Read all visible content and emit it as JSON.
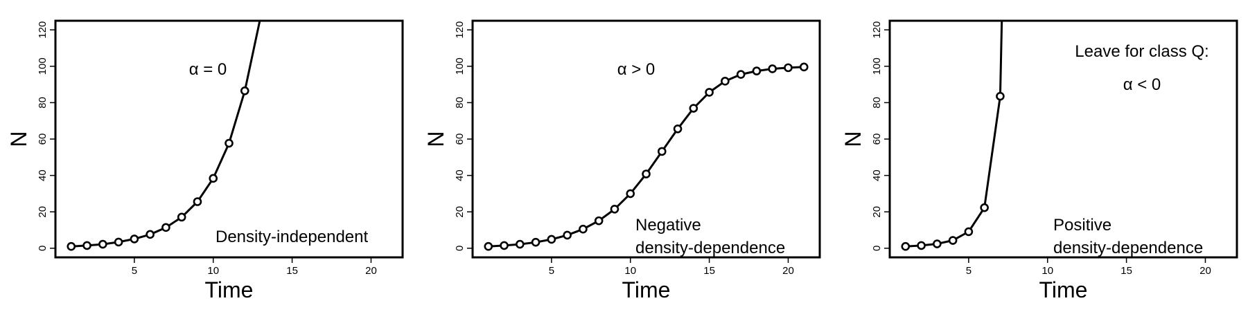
{
  "chart_data": [
    {
      "type": "line",
      "xlabel": "Time",
      "ylabel": "N",
      "xlim": [
        0,
        22
      ],
      "ylim": [
        -5,
        125
      ],
      "xticks": [
        5,
        10,
        15,
        20
      ],
      "yticks": [
        0,
        20,
        40,
        60,
        80,
        100,
        120
      ],
      "series": [
        {
          "x": [
            1,
            2,
            3,
            4,
            5,
            6,
            7,
            8,
            9,
            10,
            11,
            12
          ],
          "y": [
            1.0,
            1.5,
            2.2,
            3.4,
            5.1,
            7.6,
            11.4,
            17.1,
            25.6,
            38.4,
            57.7,
            86.5
          ]
        }
      ],
      "line_extension": {
        "x": [
          12,
          12.95
        ],
        "y": [
          86.5,
          125
        ]
      },
      "annotations": [
        {
          "text": "α = 0"
        },
        {
          "text": "Density-independent"
        }
      ]
    },
    {
      "type": "line",
      "xlabel": "Time",
      "ylabel": "N",
      "xlim": [
        0,
        22
      ],
      "ylim": [
        -5,
        125
      ],
      "xticks": [
        5,
        10,
        15,
        20
      ],
      "yticks": [
        0,
        20,
        40,
        60,
        80,
        100,
        120
      ],
      "series": [
        {
          "x": [
            1,
            2,
            3,
            4,
            5,
            6,
            7,
            8,
            9,
            10,
            11,
            12,
            13,
            14,
            15,
            16,
            17,
            18,
            19,
            20,
            21
          ],
          "y": [
            1.0,
            1.5,
            2.2,
            3.3,
            4.9,
            7.2,
            10.5,
            15.1,
            21.5,
            30.0,
            40.8,
            53.2,
            65.6,
            76.9,
            85.7,
            91.8,
            95.5,
            97.4,
            98.6,
            99.2,
            99.6
          ]
        }
      ],
      "annotations": [
        {
          "text": "α > 0"
        },
        {
          "text": "Negative"
        },
        {
          "text": "density-dependence"
        }
      ]
    },
    {
      "type": "line",
      "xlabel": "Time",
      "ylabel": "N",
      "xlim": [
        0,
        22
      ],
      "ylim": [
        -5,
        125
      ],
      "xticks": [
        5,
        10,
        15,
        20
      ],
      "yticks": [
        0,
        20,
        40,
        60,
        80,
        100,
        120
      ],
      "series": [
        {
          "x": [
            1,
            2,
            3,
            4,
            5,
            6,
            7
          ],
          "y": [
            1.0,
            1.5,
            2.4,
            4.3,
            9.1,
            22.3,
            83.5
          ]
        }
      ],
      "line_extension": {
        "x": [
          7,
          7.1
        ],
        "y": [
          83.5,
          125
        ]
      },
      "annotations": [
        {
          "text": "Leave for class Q:"
        },
        {
          "text": "α < 0"
        },
        {
          "text": "Positive"
        },
        {
          "text": "density-dependence"
        }
      ]
    }
  ]
}
